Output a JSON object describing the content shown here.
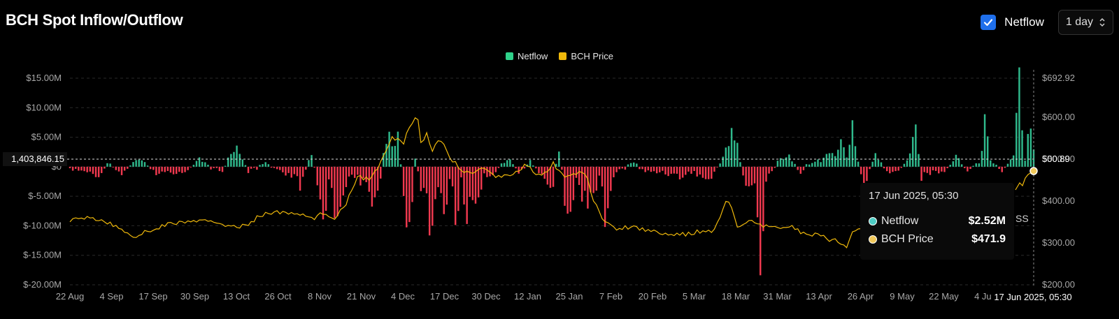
{
  "header": {
    "title": "BCH Spot Inflow/Outflow"
  },
  "controls": {
    "netflow_label": "Netflow",
    "interval": "1 day"
  },
  "legend": [
    {
      "label": "Netflow",
      "color": "#2fd28a"
    },
    {
      "label": "BCH Price",
      "color": "#f0b90b"
    }
  ],
  "crosshair": {
    "left_value": "1,403,846.15",
    "right_value": "500.89",
    "x_label": "17 Jun 2025, 05:30"
  },
  "tooltip": {
    "date": "17 Jun 2025, 05:30",
    "rows": [
      {
        "name": "Netflow",
        "value": "$2.52M"
      },
      {
        "name": "BCH Price",
        "value": "$471.9"
      }
    ],
    "partial_text": "SS"
  },
  "colors": {
    "positive": "#2fb98c",
    "negative": "#f0394f",
    "price": "#f0b90b",
    "background": "#000000",
    "tooltip_dot_netflow": "#4ecdc4"
  },
  "chart_data": {
    "type": "bar",
    "title": "BCH Spot Inflow/Outflow",
    "y_left_ticks": [
      "$15.00M",
      "$10.00M",
      "$5.00M",
      "$0",
      "$-5.00M",
      "$-10.00M",
      "$-15.00M",
      "$-20.00M"
    ],
    "y_left_range": [
      -20,
      15
    ],
    "y_right_ticks": [
      "$692.92",
      "$600.00",
      "$500.00",
      "$400.00",
      "$300.00",
      "$200.00"
    ],
    "y_right_range": [
      200,
      692.92
    ],
    "x_tick_labels": [
      "22 Aug",
      "4 Sep",
      "17 Sep",
      "30 Sep",
      "13 Oct",
      "26 Oct",
      "8 Nov",
      "21 Nov",
      "4 Dec",
      "17 Dec",
      "30 Dec",
      "12 Jan",
      "25 Jan",
      "7 Feb",
      "20 Feb",
      "5 Mar",
      "18 Mar",
      "31 Mar",
      "13 Apr",
      "26 Apr",
      "9 May",
      "22 May",
      "4 Jun"
    ],
    "start_date": "22 Aug",
    "end_date": "17 Jun",
    "series": [
      {
        "name": "Netflow",
        "unit": "$M",
        "anchors": [
          [
            0,
            -0.5
          ],
          [
            6,
            -1
          ],
          [
            9,
            -2
          ],
          [
            14,
            0.5
          ],
          [
            18,
            -1.5
          ],
          [
            24,
            2
          ],
          [
            30,
            -1.2
          ],
          [
            40,
            -1
          ],
          [
            45,
            1.5
          ],
          [
            53,
            -1
          ],
          [
            58,
            5
          ],
          [
            62,
            -1
          ],
          [
            68,
            1
          ],
          [
            74,
            -1.5
          ],
          [
            78,
            -2
          ],
          [
            80,
            -4
          ],
          [
            84,
            3.5
          ],
          [
            88,
            -11
          ],
          [
            90,
            -2
          ],
          [
            92,
            -10
          ],
          [
            96,
            -3
          ],
          [
            100,
            -2
          ],
          [
            104,
            -5
          ],
          [
            106,
            -7
          ],
          [
            108,
            -2
          ],
          [
            110,
            6
          ],
          [
            114,
            7
          ],
          [
            116,
            -6
          ],
          [
            118,
            -12
          ],
          [
            120,
            2
          ],
          [
            124,
            -9
          ],
          [
            126,
            -14
          ],
          [
            128,
            -3
          ],
          [
            130,
            -10
          ],
          [
            132,
            -2
          ],
          [
            134,
            -11
          ],
          [
            136,
            -3
          ],
          [
            138,
            -9
          ],
          [
            142,
            -5
          ],
          [
            144,
            -2
          ],
          [
            148,
            -1
          ],
          [
            152,
            2
          ],
          [
            156,
            -1
          ],
          [
            160,
            1
          ],
          [
            164,
            -2
          ],
          [
            168,
            -4
          ],
          [
            170,
            5
          ],
          [
            172,
            -6
          ],
          [
            174,
            -9
          ],
          [
            176,
            -3
          ],
          [
            178,
            -5
          ],
          [
            180,
            -6
          ],
          [
            184,
            -3
          ],
          [
            186,
            -9
          ],
          [
            190,
            -1
          ],
          [
            196,
            1
          ],
          [
            200,
            -1
          ],
          [
            206,
            -1
          ],
          [
            212,
            -2
          ],
          [
            216,
            -1
          ],
          [
            220,
            -2
          ],
          [
            222,
            -3
          ],
          [
            226,
            1
          ],
          [
            228,
            3
          ],
          [
            230,
            6
          ],
          [
            232,
            4
          ],
          [
            234,
            -2
          ],
          [
            236,
            -5
          ],
          [
            238,
            -3
          ],
          [
            240,
            -19
          ],
          [
            242,
            -3
          ],
          [
            246,
            1
          ],
          [
            250,
            2
          ],
          [
            254,
            -1
          ],
          [
            258,
            1
          ],
          [
            264,
            2
          ],
          [
            268,
            5
          ],
          [
            270,
            2
          ],
          [
            272,
            9
          ],
          [
            274,
            1
          ],
          [
            276,
            -4
          ],
          [
            280,
            3
          ],
          [
            284,
            -1
          ],
          [
            288,
            -1
          ],
          [
            292,
            2
          ],
          [
            294,
            8
          ],
          [
            296,
            -2
          ],
          [
            300,
            -1
          ],
          [
            304,
            -1
          ],
          [
            308,
            2
          ],
          [
            312,
            -1
          ],
          [
            316,
            1
          ],
          [
            318,
            8
          ],
          [
            320,
            1
          ],
          [
            324,
            -1
          ],
          [
            328,
            2
          ],
          [
            330,
            15
          ],
          [
            332,
            1
          ],
          [
            334,
            9
          ],
          [
            335,
            2.52
          ]
        ]
      },
      {
        "name": "BCH Price",
        "unit": "$",
        "anchors": [
          [
            0,
            355
          ],
          [
            8,
            360
          ],
          [
            16,
            340
          ],
          [
            22,
            315
          ],
          [
            28,
            330
          ],
          [
            34,
            345
          ],
          [
            40,
            350
          ],
          [
            46,
            352
          ],
          [
            52,
            348
          ],
          [
            58,
            335
          ],
          [
            62,
            345
          ],
          [
            66,
            365
          ],
          [
            70,
            373
          ],
          [
            74,
            372
          ],
          [
            80,
            368
          ],
          [
            84,
            357
          ],
          [
            88,
            370
          ],
          [
            92,
            360
          ],
          [
            96,
            395
          ],
          [
            100,
            460
          ],
          [
            104,
            450
          ],
          [
            108,
            490
          ],
          [
            112,
            550
          ],
          [
            116,
            540
          ],
          [
            118,
            580
          ],
          [
            120,
            600
          ],
          [
            121,
            590
          ],
          [
            122,
            540
          ],
          [
            124,
            560
          ],
          [
            126,
            520
          ],
          [
            128,
            545
          ],
          [
            130,
            540
          ],
          [
            132,
            500
          ],
          [
            134,
            490
          ],
          [
            136,
            470
          ],
          [
            140,
            468
          ],
          [
            144,
            480
          ],
          [
            148,
            455
          ],
          [
            152,
            460
          ],
          [
            156,
            470
          ],
          [
            158,
            490
          ],
          [
            160,
            480
          ],
          [
            162,
            460
          ],
          [
            166,
            465
          ],
          [
            168,
            490
          ],
          [
            170,
            470
          ],
          [
            172,
            460
          ],
          [
            176,
            465
          ],
          [
            178,
            470
          ],
          [
            180,
            450
          ],
          [
            182,
            400
          ],
          [
            186,
            350
          ],
          [
            190,
            333
          ],
          [
            196,
            340
          ],
          [
            200,
            330
          ],
          [
            204,
            328
          ],
          [
            210,
            318
          ],
          [
            216,
            322
          ],
          [
            220,
            330
          ],
          [
            224,
            329
          ],
          [
            228,
            400
          ],
          [
            230,
            386
          ],
          [
            232,
            338
          ],
          [
            236,
            352
          ],
          [
            240,
            340
          ],
          [
            246,
            335
          ],
          [
            250,
            342
          ],
          [
            256,
            318
          ],
          [
            260,
            320
          ],
          [
            264,
            308
          ],
          [
            266,
            314
          ],
          [
            268,
            293
          ],
          [
            270,
            290
          ],
          [
            272,
            322
          ],
          [
            276,
            340
          ],
          [
            278,
            346
          ],
          [
            282,
            349
          ],
          [
            286,
            350
          ],
          [
            290,
            345
          ],
          [
            292,
            360
          ]
        ]
      }
    ],
    "n_days": 336
  }
}
